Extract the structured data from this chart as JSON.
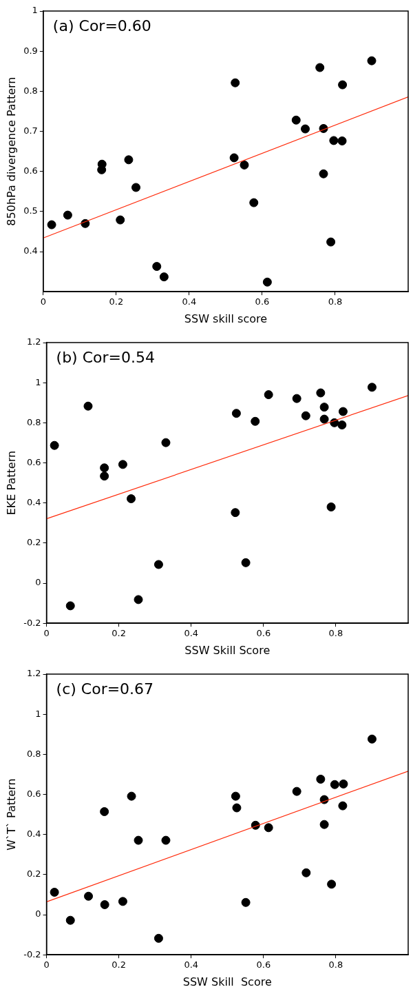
{
  "chart_data": [
    {
      "type": "scatter",
      "annotations": [
        "(a) Cor=0.60"
      ],
      "xlabel": "SSW skill score",
      "ylabel": "850hPa divergence Pattern",
      "xlim": [
        0,
        1
      ],
      "ylim": [
        0.3,
        1
      ],
      "xticks": [
        0,
        0.2,
        0.4,
        0.6,
        0.8
      ],
      "yticks": [
        0.4,
        0.5,
        0.6,
        0.7,
        0.8,
        0.9,
        1
      ],
      "grid": false,
      "series": [
        {
          "type": "scatter",
          "marker": "circle",
          "color": "#000000",
          "x": [
            0.023,
            0.067,
            0.115,
            0.161,
            0.16,
            0.211,
            0.234,
            0.254,
            0.311,
            0.331,
            0.523,
            0.526,
            0.551,
            0.577,
            0.614,
            0.693,
            0.718,
            0.758,
            0.768,
            0.768,
            0.788,
            0.796,
            0.819,
            0.82,
            0.9
          ],
          "values": [
            0.467,
            0.491,
            0.47,
            0.618,
            0.604,
            0.479,
            0.629,
            0.56,
            0.363,
            0.337,
            0.634,
            0.821,
            0.616,
            0.522,
            0.324,
            0.728,
            0.706,
            0.859,
            0.707,
            0.594,
            0.424,
            0.677,
            0.676,
            0.816,
            0.876
          ]
        },
        {
          "type": "line",
          "marker": "none",
          "color": "#ff2a0a",
          "x": [
            0,
            1
          ],
          "values": [
            0.434,
            0.786
          ]
        }
      ]
    },
    {
      "type": "scatter",
      "annotations": [
        "(b) Cor=0.54"
      ],
      "xlabel": "SSW Skill Score",
      "ylabel": "EKE Pattern",
      "xlim": [
        0,
        1
      ],
      "ylim": [
        -0.2,
        1.2
      ],
      "xticks": [
        0,
        0.2,
        0.4,
        0.6,
        0.8
      ],
      "yticks": [
        -0.2,
        0,
        0.2,
        0.4,
        0.6,
        0.8,
        1,
        1.2
      ],
      "grid": false,
      "series": [
        {
          "type": "scatter",
          "marker": "circle",
          "color": "#000000",
          "x": [
            0.022,
            0.066,
            0.115,
            0.16,
            0.16,
            0.211,
            0.234,
            0.254,
            0.31,
            0.33,
            0.522,
            0.525,
            0.551,
            0.577,
            0.614,
            0.692,
            0.717,
            0.758,
            0.768,
            0.768,
            0.787,
            0.796,
            0.817,
            0.82,
            0.9
          ],
          "values": [
            0.687,
            -0.113,
            0.883,
            0.575,
            0.534,
            0.592,
            0.421,
            -0.082,
            0.093,
            0.701,
            0.352,
            0.847,
            0.102,
            0.807,
            0.94,
            0.921,
            0.835,
            0.949,
            0.878,
            0.818,
            0.38,
            0.8,
            0.789,
            0.856,
            0.977
          ]
        },
        {
          "type": "line",
          "marker": "none",
          "color": "#ff2a0a",
          "x": [
            0,
            1
          ],
          "values": [
            0.321,
            0.936
          ]
        }
      ]
    },
    {
      "type": "scatter",
      "annotations": [
        "(c) Cor=0.67"
      ],
      "xlabel": "SSW Skill  Score",
      "ylabel": "W`T` Pattern",
      "xlim": [
        0,
        1
      ],
      "ylim": [
        -0.2,
        1.2
      ],
      "xticks": [
        0,
        0.2,
        0.4,
        0.6,
        0.8
      ],
      "yticks": [
        -0.2,
        0,
        0.2,
        0.4,
        0.6,
        0.8,
        1,
        1.2
      ],
      "grid": false,
      "series": [
        {
          "type": "scatter",
          "marker": "circle",
          "color": "#000000",
          "x": [
            0.022,
            0.066,
            0.116,
            0.161,
            0.16,
            0.211,
            0.235,
            0.254,
            0.31,
            0.33,
            0.523,
            0.526,
            0.551,
            0.578,
            0.614,
            0.692,
            0.718,
            0.758,
            0.768,
            0.768,
            0.788,
            0.797,
            0.819,
            0.821,
            0.9
          ],
          "values": [
            0.112,
            -0.028,
            0.092,
            0.05,
            0.514,
            0.066,
            0.591,
            0.371,
            -0.118,
            0.371,
            0.591,
            0.533,
            0.061,
            0.446,
            0.434,
            0.615,
            0.209,
            0.676,
            0.574,
            0.45,
            0.152,
            0.649,
            0.543,
            0.652,
            0.876
          ]
        },
        {
          "type": "line",
          "marker": "none",
          "color": "#ff2a0a",
          "x": [
            0,
            1
          ],
          "values": [
            0.064,
            0.716
          ]
        }
      ]
    }
  ]
}
